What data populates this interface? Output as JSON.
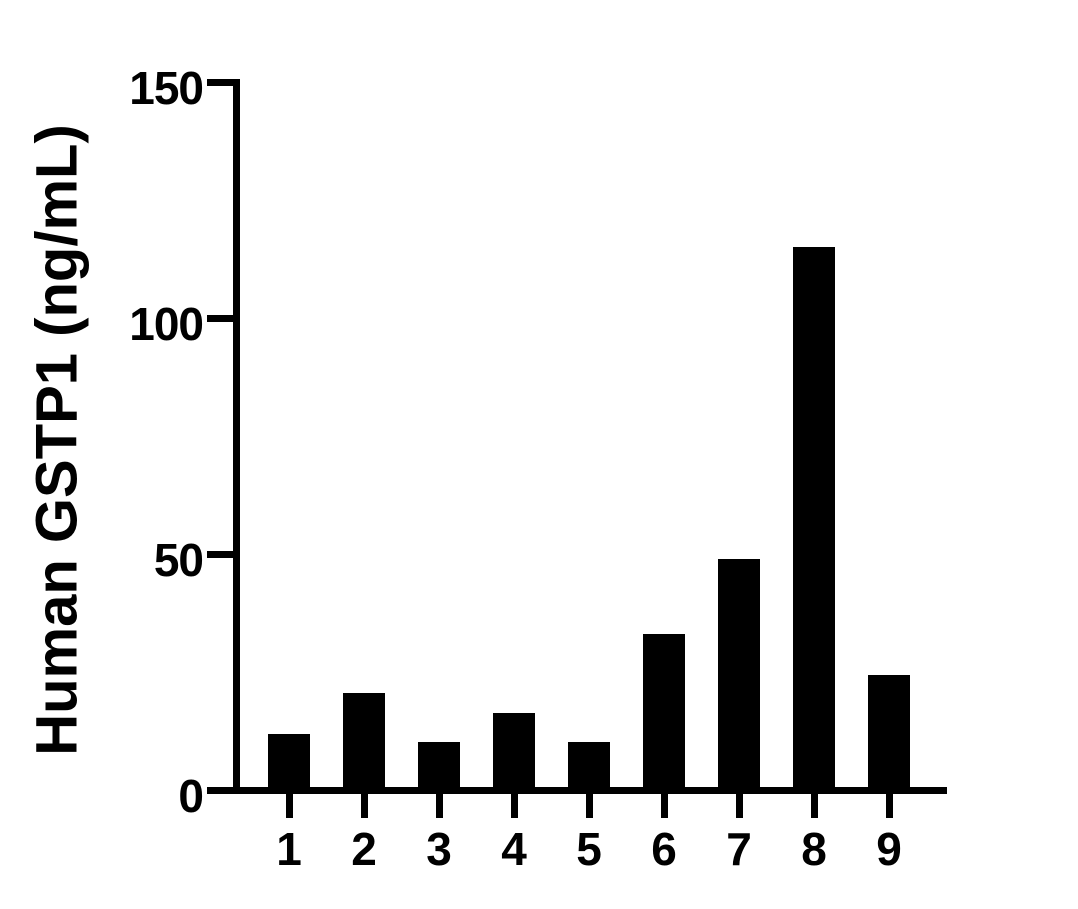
{
  "chart_data": {
    "type": "bar",
    "title": "",
    "xlabel": "",
    "ylabel": "Human GSTP1 (ng/mL)",
    "categories": [
      "1",
      "2",
      "3",
      "4",
      "5",
      "6",
      "7",
      "8",
      "9"
    ],
    "values": [
      11.9,
      20.6,
      10.2,
      16.3,
      10.2,
      33.1,
      49.0,
      115.0,
      24.4
    ],
    "series_name": "Human GSTP1 concentration",
    "ylim": [
      0,
      150
    ],
    "yticks": [
      0,
      50,
      100,
      150
    ],
    "grid": false,
    "legend_position": "none",
    "bar_color": "#000000",
    "axis_color": "#000000",
    "background_color": "#ffffff"
  }
}
